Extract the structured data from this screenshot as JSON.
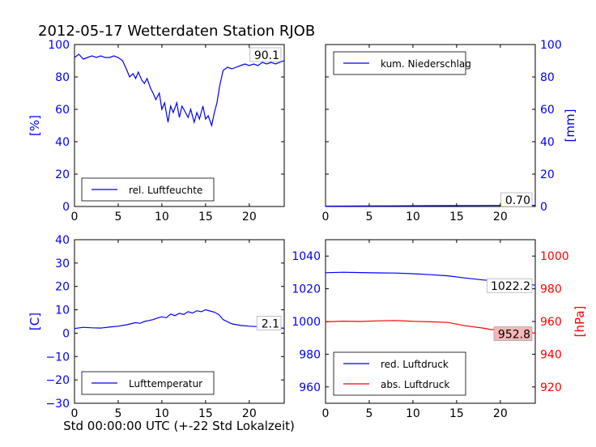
{
  "title": "2012-05-17 Wetterdaten Station RJOB",
  "footer_xlabel": "Std 00:00:00 UTC (+-22 Std Lokalzeit)",
  "colors": {
    "blue": "#0000ff",
    "red": "#ff0000",
    "black": "#000000",
    "pink": "#f4b6b6"
  },
  "chart_data": [
    {
      "type": "line",
      "panel": "top-left",
      "ylabel": "[%]",
      "xlim": [
        0,
        24
      ],
      "ylim": [
        0,
        100
      ],
      "xticks": [
        "0",
        "5",
        "10",
        "15",
        "20"
      ],
      "yticks": [
        "0",
        "20",
        "40",
        "60",
        "80",
        "100"
      ],
      "last_value_label": "90.1",
      "legend": {
        "placement": "lower-left"
      },
      "series": [
        {
          "name": "rel. Luftfeuchte",
          "color": "#0000ff",
          "x": [
            0,
            0.5,
            1,
            1.5,
            2,
            2.5,
            3,
            3.5,
            4,
            4.5,
            5,
            5.5,
            6,
            6.3,
            6.7,
            7,
            7.3,
            7.7,
            8,
            8.3,
            8.7,
            9,
            9.3,
            9.7,
            10,
            10.3,
            10.7,
            11,
            11.3,
            11.7,
            12,
            12.3,
            12.7,
            13,
            13.3,
            13.7,
            14,
            14.3,
            14.7,
            15,
            15.3,
            15.7,
            16,
            16.3,
            16.6,
            17,
            17.5,
            18,
            18.5,
            19,
            19.5,
            20,
            20.5,
            21,
            21.5,
            22,
            22.5,
            23,
            23.5,
            24
          ],
          "y": [
            92,
            94,
            91,
            92,
            93,
            92,
            93,
            92,
            92,
            93,
            92,
            90,
            84,
            80,
            82,
            79,
            83,
            78,
            76,
            79,
            73,
            70,
            66,
            70,
            60,
            64,
            52,
            62,
            58,
            64,
            55,
            62,
            58,
            55,
            60,
            52,
            58,
            54,
            62,
            54,
            56,
            50,
            58,
            64,
            74,
            84,
            86,
            85,
            86,
            87,
            88,
            87,
            88,
            87,
            89,
            88,
            89,
            88,
            89,
            90.1
          ]
        }
      ]
    },
    {
      "type": "line",
      "panel": "top-right",
      "ylabel": "[mm]",
      "xlim": [
        0,
        24
      ],
      "ylim": [
        0,
        100
      ],
      "xticks": [
        "0",
        "5",
        "10",
        "15",
        "20"
      ],
      "yticks": [
        "0",
        "20",
        "40",
        "60",
        "80",
        "100"
      ],
      "last_value_label": "0.70",
      "legend": {
        "placement": "upper-left"
      },
      "series": [
        {
          "name": "kum. Niederschlag",
          "color": "#0000ff",
          "x": [
            0,
            4,
            8,
            12,
            16,
            20,
            24
          ],
          "y": [
            0.2,
            0.3,
            0.4,
            0.5,
            0.6,
            0.65,
            0.7
          ]
        }
      ]
    },
    {
      "type": "line",
      "panel": "bottom-left",
      "ylabel": "[C]",
      "xlim": [
        0,
        24
      ],
      "ylim": [
        -30,
        40
      ],
      "xticks": [
        "0",
        "5",
        "10",
        "15",
        "20"
      ],
      "yticks": [
        "−30",
        "−20",
        "−10",
        "0",
        "10",
        "20",
        "30",
        "40"
      ],
      "last_value_label": "2.1",
      "legend": {
        "placement": "lower-left"
      },
      "series": [
        {
          "name": "Lufttemperatur",
          "color": "#0000ff",
          "x": [
            0,
            1,
            2,
            3,
            4,
            5,
            6,
            7,
            7.5,
            8,
            8.5,
            9,
            9.5,
            10,
            10.5,
            11,
            11.5,
            12,
            12.5,
            13,
            13.5,
            14,
            14.5,
            15,
            15.5,
            16,
            16.5,
            17,
            18,
            19,
            20,
            21,
            22,
            23,
            24
          ],
          "y": [
            2,
            2.5,
            2.3,
            2.2,
            2.6,
            3,
            3.6,
            4.5,
            4.2,
            5,
            5.4,
            5.8,
            6.5,
            7,
            6.6,
            8.2,
            7.5,
            8.5,
            8,
            9.2,
            8.6,
            9.6,
            9.2,
            10,
            9.5,
            9,
            8,
            5.8,
            4,
            3.3,
            3,
            2.8,
            2.6,
            2.4,
            2.1
          ]
        }
      ]
    },
    {
      "type": "line",
      "panel": "bottom-right",
      "ylabel_left": "",
      "ylabel_right": "[hPa]",
      "xlim": [
        0,
        24
      ],
      "ylim_left": [
        950,
        1050
      ],
      "ylim_right": [
        910,
        1010
      ],
      "xticks": [
        "0",
        "5",
        "10",
        "15",
        "20"
      ],
      "yticks_left": [
        "960",
        "980",
        "1000",
        "1020",
        "1040"
      ],
      "yticks_right": [
        "920",
        "940",
        "960",
        "980",
        "1000"
      ],
      "last_value_labels": [
        "1022.2",
        "952.8"
      ],
      "legend": {
        "placement": "lower-left"
      },
      "series": [
        {
          "name": "red. Luftdruck",
          "color": "#0000ff",
          "axis": "left",
          "x": [
            0,
            2,
            4,
            6,
            8,
            10,
            12,
            14,
            16,
            18,
            20,
            22,
            24
          ],
          "y": [
            1029.8,
            1030.1,
            1029.9,
            1029.7,
            1029.6,
            1029.2,
            1028.6,
            1027.9,
            1026.6,
            1025.4,
            1024.6,
            1023.5,
            1022.2
          ]
        },
        {
          "name": "abs. Luftdruck",
          "color": "#ff0000",
          "axis": "right",
          "x": [
            0,
            2,
            4,
            6,
            8,
            10,
            12,
            14,
            16,
            18,
            19,
            20,
            22,
            24
          ],
          "y": [
            959.8,
            960.2,
            960.0,
            960.4,
            960.6,
            960.1,
            959.8,
            959.4,
            957.4,
            956.0,
            955.0,
            955.6,
            954.4,
            952.8
          ]
        }
      ]
    }
  ]
}
